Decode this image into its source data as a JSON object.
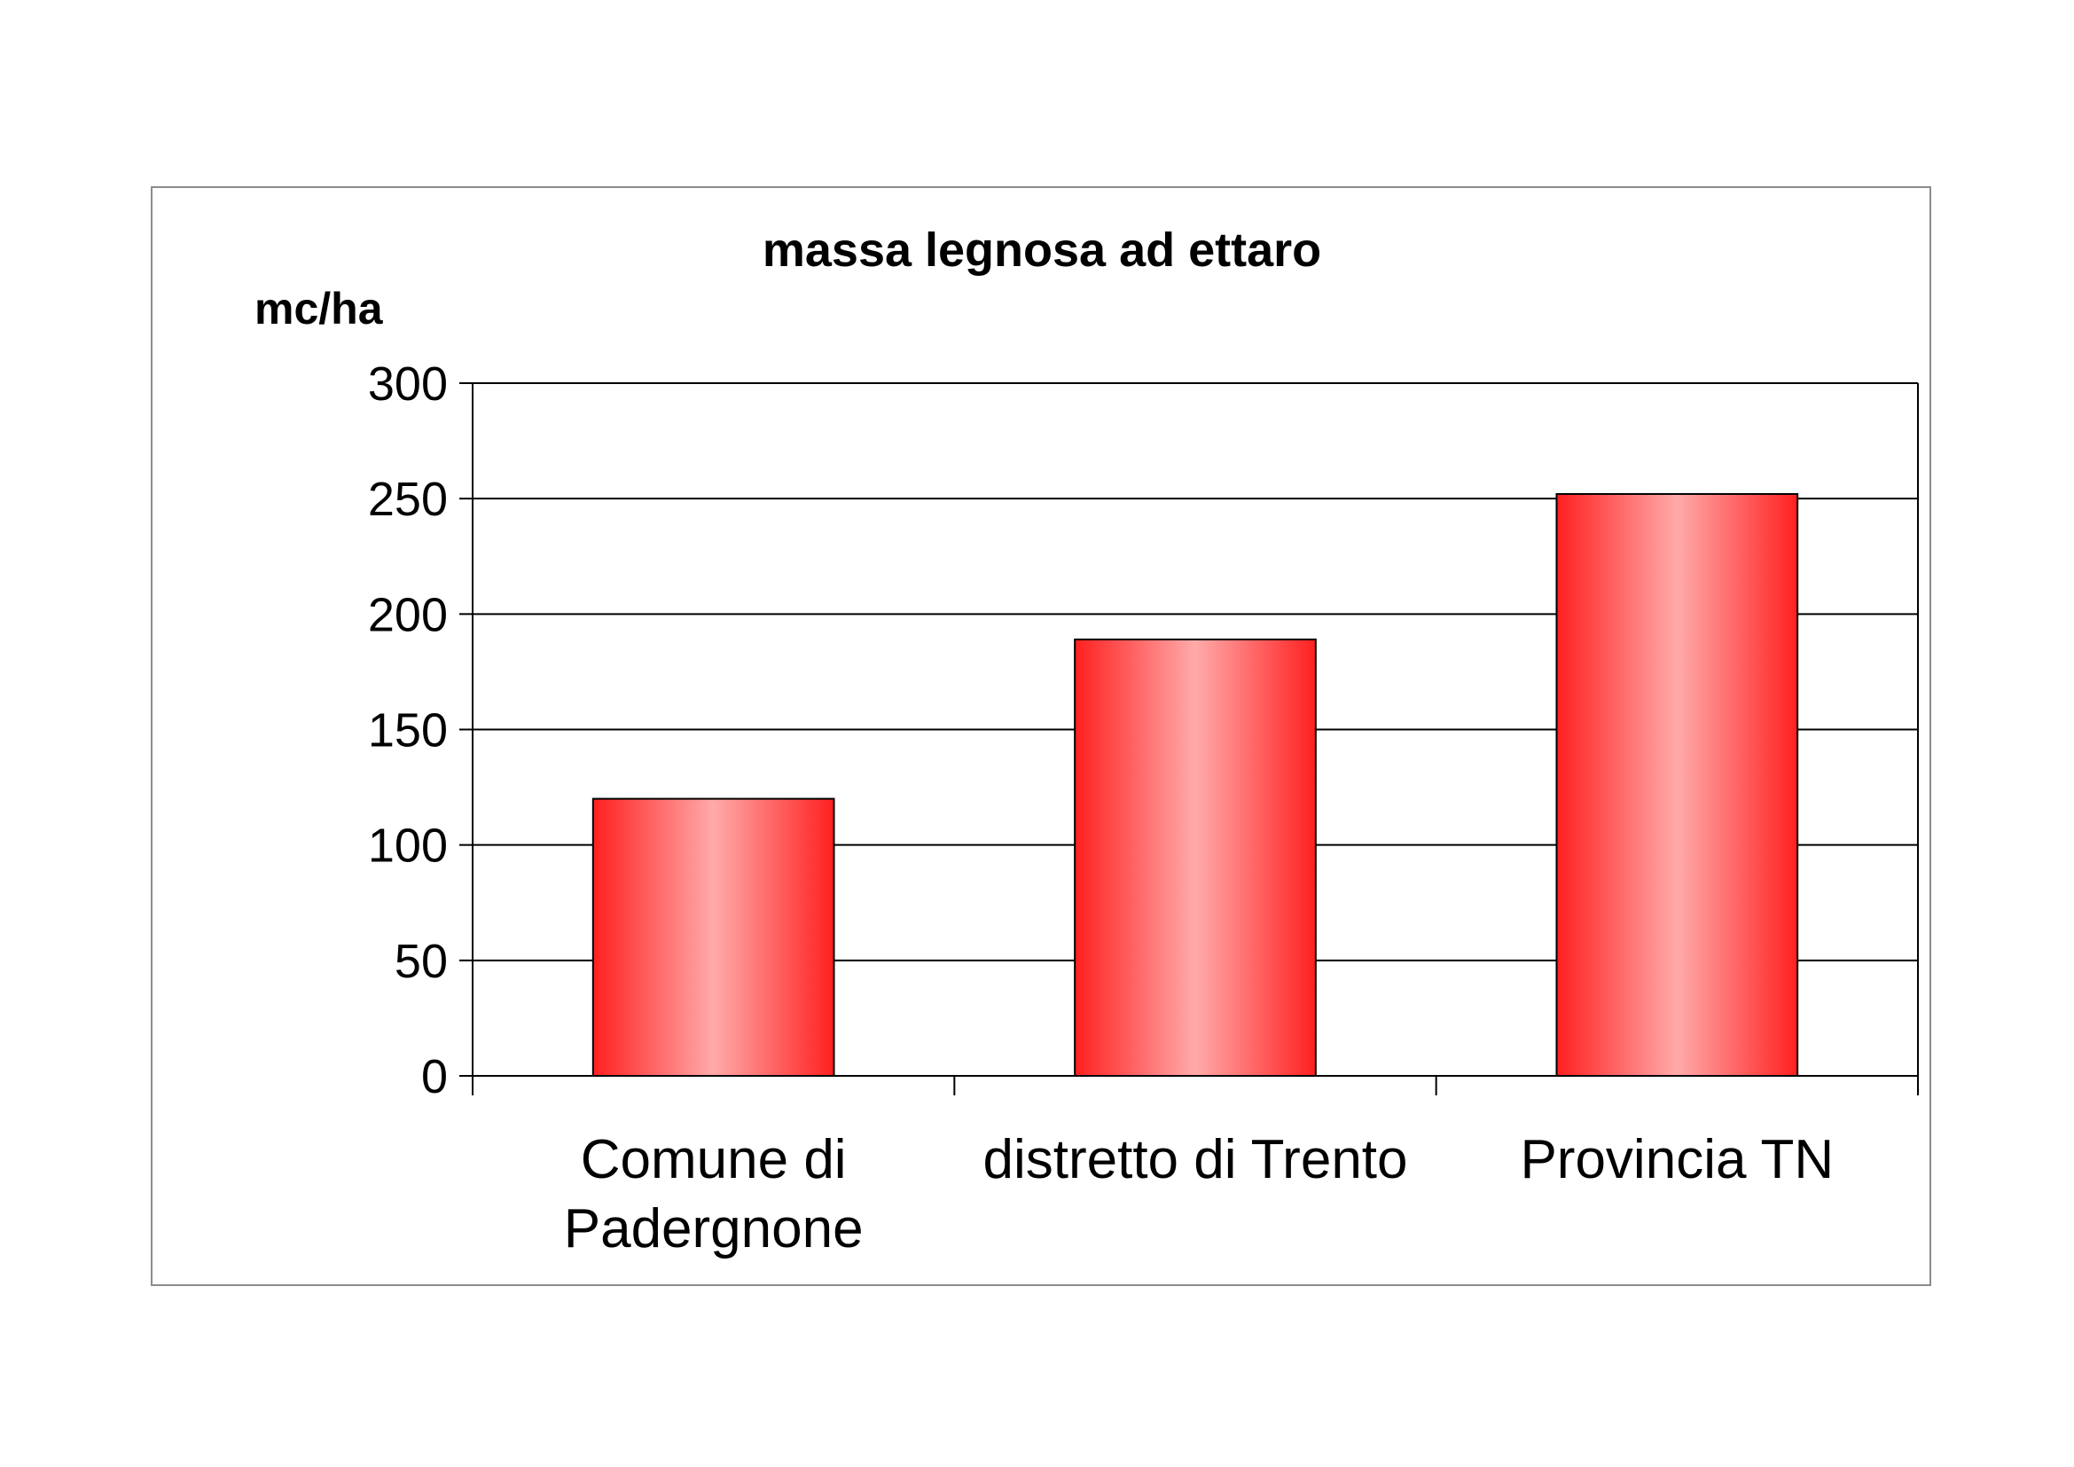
{
  "chart_data": {
    "type": "bar",
    "title": "massa legnosa ad ettaro",
    "ylabel": "mc/ha",
    "xlabel": "",
    "categories": [
      [
        "Comune di",
        "Padergnone"
      ],
      [
        "distretto di Trento"
      ],
      [
        "Provincia TN"
      ]
    ],
    "values": [
      120,
      189,
      252
    ],
    "ylim": [
      0,
      300
    ],
    "yticks": [
      0,
      50,
      100,
      150,
      200,
      250,
      300
    ],
    "grid": true,
    "legend": "none",
    "bar_color": "#ff2020",
    "bar_highlight": "#ffaaaa"
  }
}
